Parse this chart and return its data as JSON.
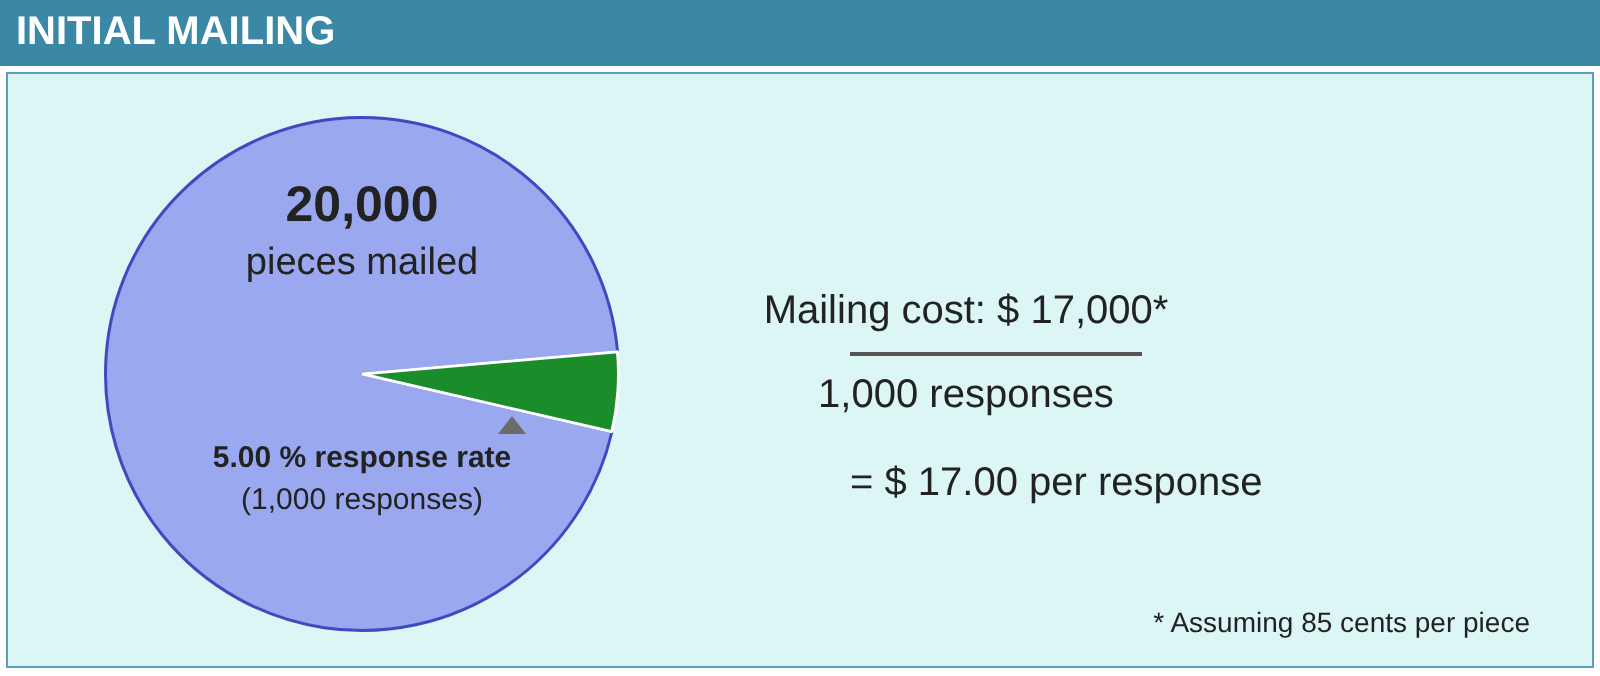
{
  "chart_data": {
    "type": "pie",
    "title": "INITIAL MAILING",
    "categories": [
      null,
      null
    ],
    "values": [
      95,
      5
    ],
    "colors": [
      "#9aa8ef",
      "#1b8c2a"
    ],
    "legend": false,
    "annotations": [
      "20,000",
      "pieces mailed",
      "5.00 % response rate",
      "(1,000 responses)",
      "Mailing cost: $ 17,000*",
      "1,000 responses",
      "= $ 17.00 per response",
      "* Assuming 85 cents per piece"
    ]
  }
}
